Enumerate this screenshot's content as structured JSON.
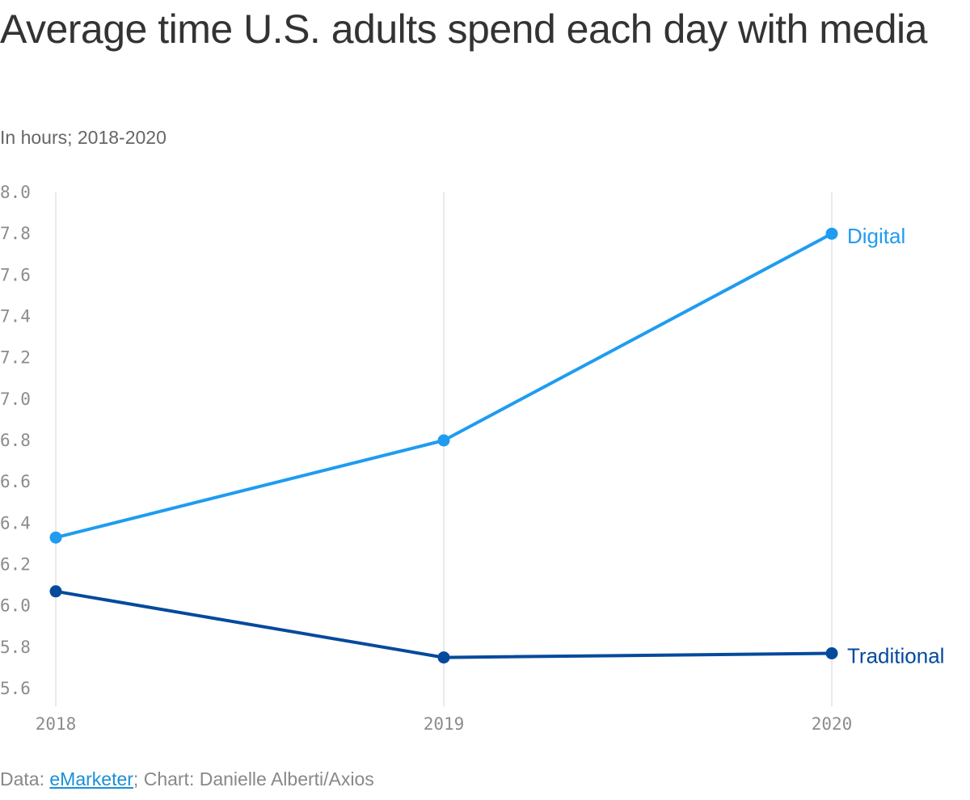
{
  "header": {
    "title": "Average time U.S. adults spend each day with media",
    "subtitle": "In hours; 2018-2020"
  },
  "footer": {
    "data_prefix": "Data: ",
    "source_link": "eMarketer",
    "separator": "; ",
    "credit": "Chart: Danielle Alberti/Axios"
  },
  "chart_data": {
    "type": "line",
    "x": [
      "2018",
      "2019",
      "2020"
    ],
    "series": [
      {
        "name": "Digital",
        "values": [
          6.33,
          6.8,
          7.8
        ],
        "color": "#1f9cf0"
      },
      {
        "name": "Traditional",
        "values": [
          6.07,
          5.75,
          5.77
        ],
        "color": "#044a9c"
      }
    ],
    "ylim": [
      5.6,
      8.0
    ],
    "yticks": [
      "8.0",
      "7.8",
      "7.6",
      "7.4",
      "7.2",
      "7.0",
      "6.8",
      "6.6",
      "6.4",
      "6.2",
      "6.0",
      "5.8",
      "5.6"
    ],
    "grid": "vertical",
    "legend": "direct labels at line ends",
    "xlabel": "",
    "ylabel": ""
  }
}
